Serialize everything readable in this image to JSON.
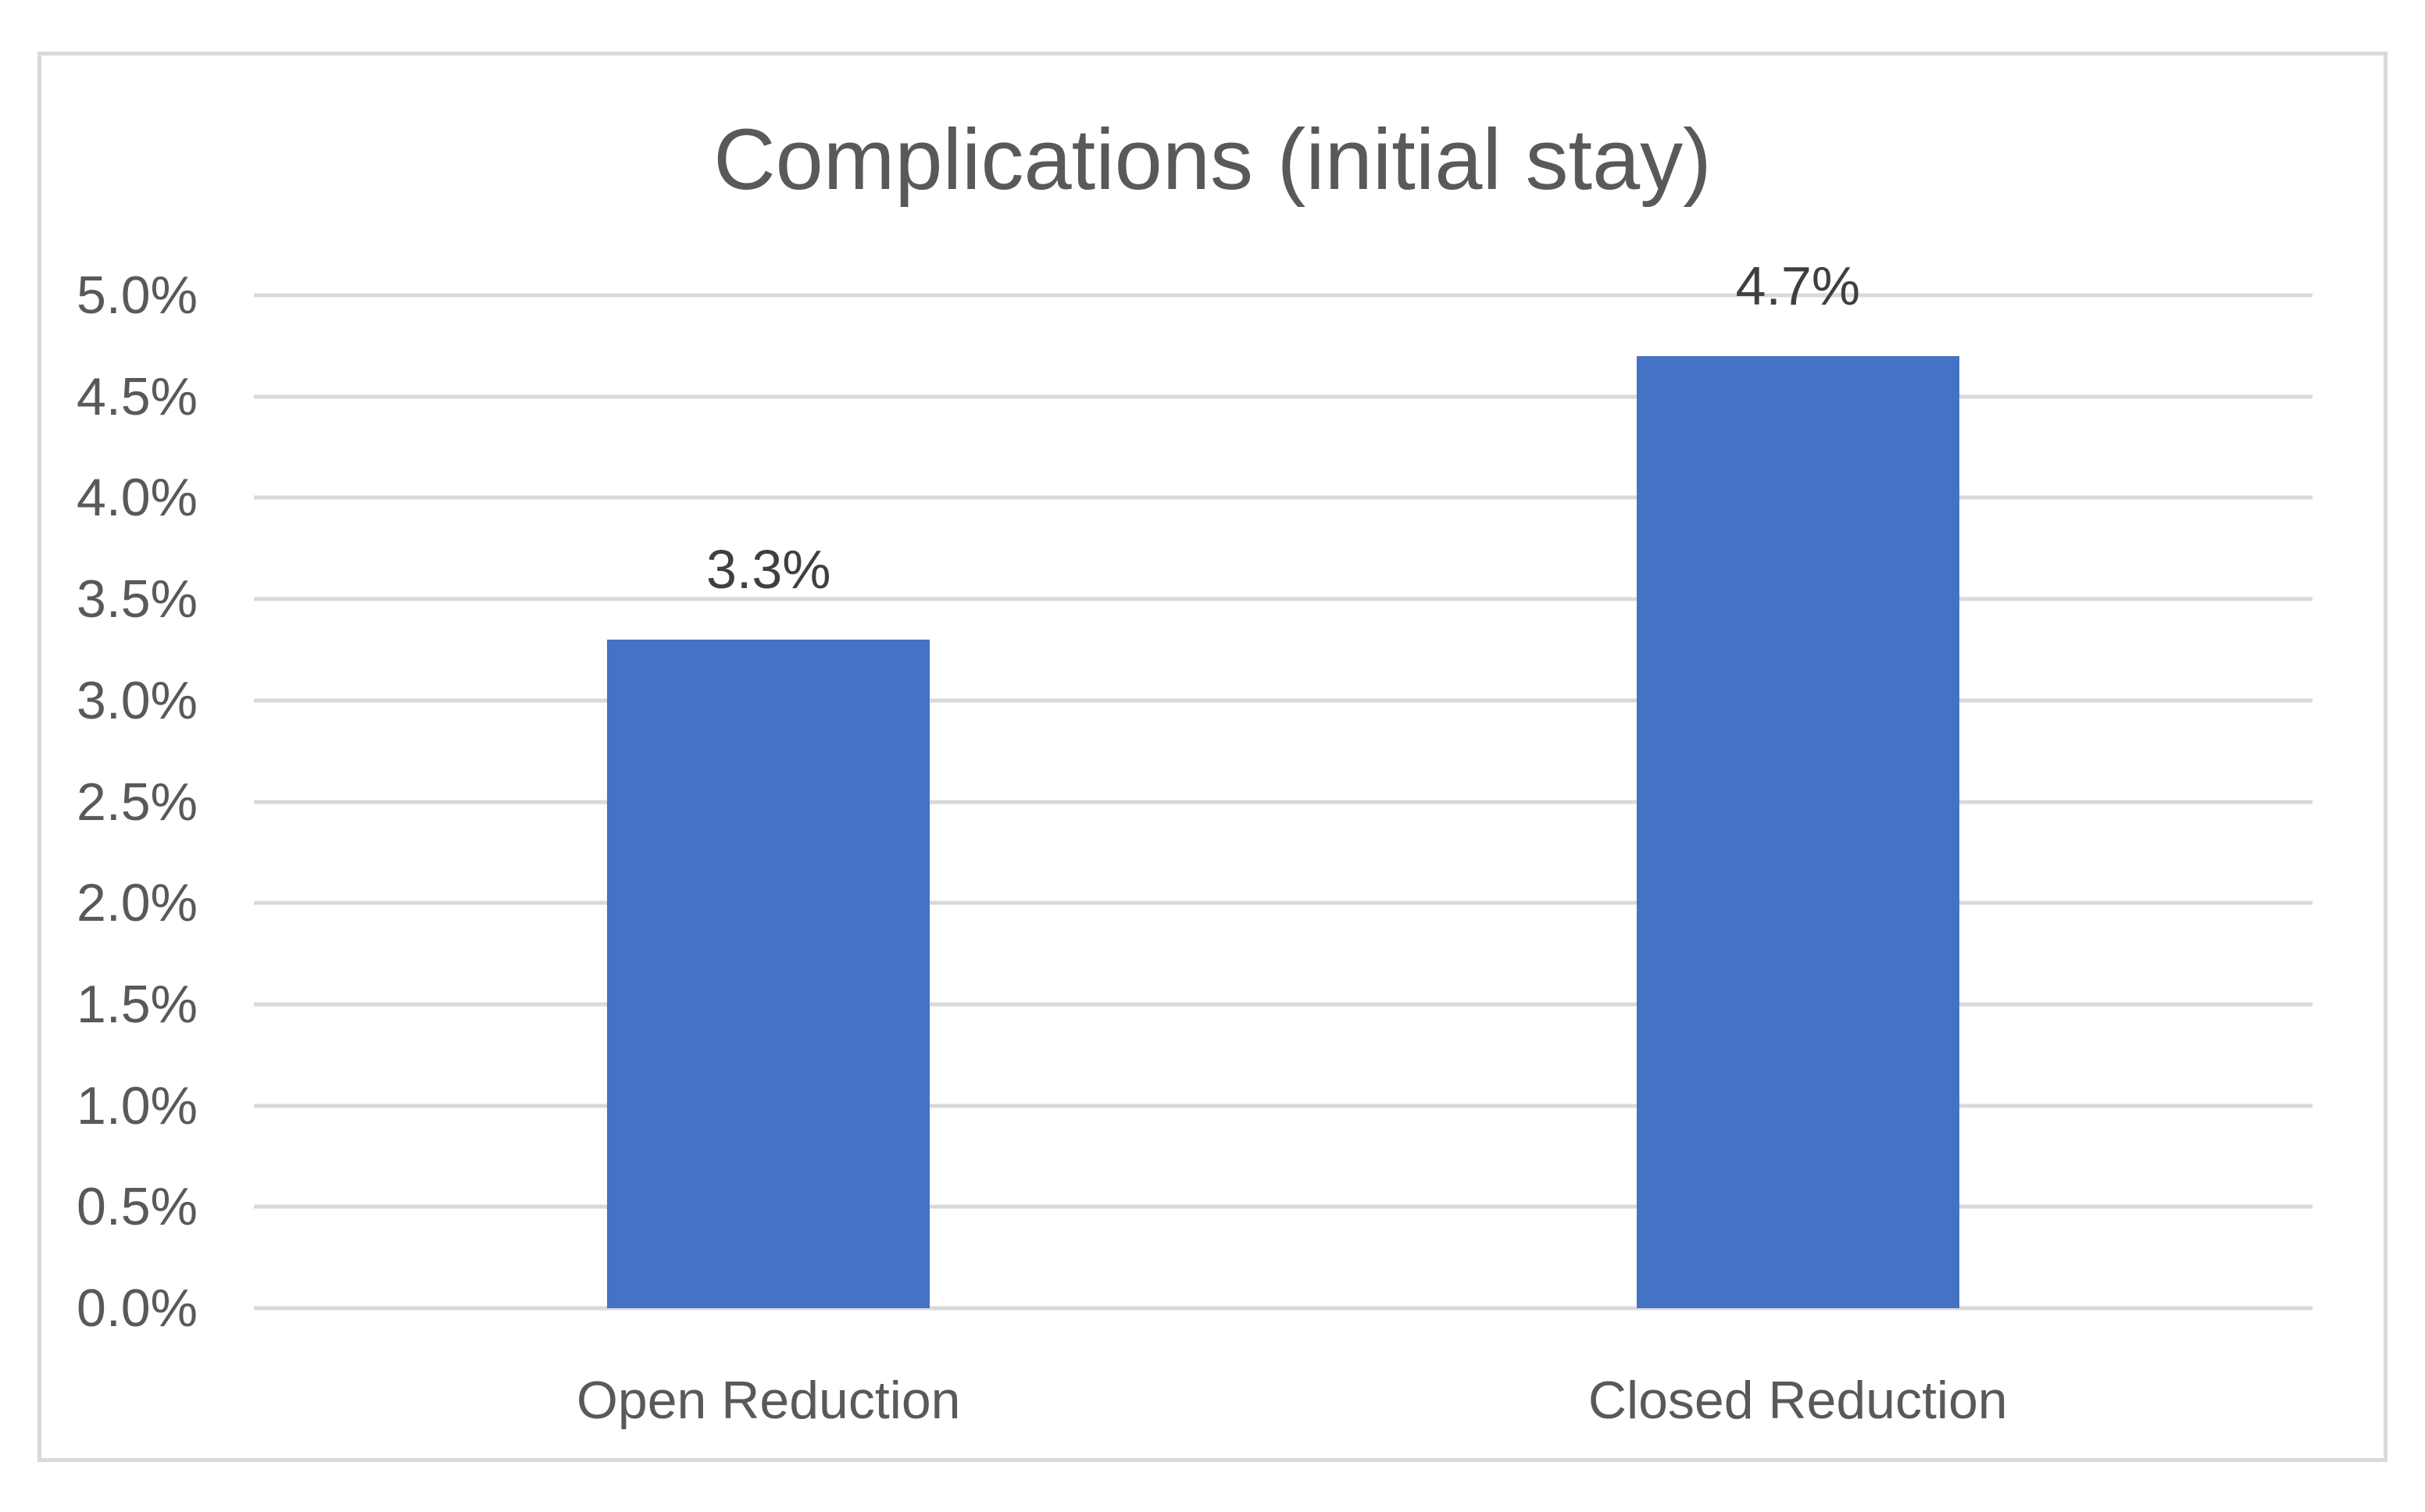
{
  "chart_data": {
    "type": "bar",
    "title": "Complications (initial stay)",
    "categories": [
      "Open Reduction",
      "Closed Reduction"
    ],
    "values": [
      3.3,
      4.7
    ],
    "value_labels": [
      "3.3%",
      "4.7%"
    ],
    "ylim": [
      0,
      5
    ],
    "ytick_step": 0.5,
    "ytick_labels": [
      "0.0%",
      "0.5%",
      "1.0%",
      "1.5%",
      "2.0%",
      "2.5%",
      "3.0%",
      "3.5%",
      "4.0%",
      "4.5%",
      "5.0%"
    ],
    "xlabel": "",
    "ylabel": "",
    "grid": true,
    "legend_position": "none",
    "colors": {
      "bar": "#4472C4",
      "gridline": "#D9D9D9",
      "frame_border": "#D9D9D9",
      "axis_text": "#595959",
      "title_text": "#595959",
      "data_label_text": "#3F3F3F"
    }
  }
}
